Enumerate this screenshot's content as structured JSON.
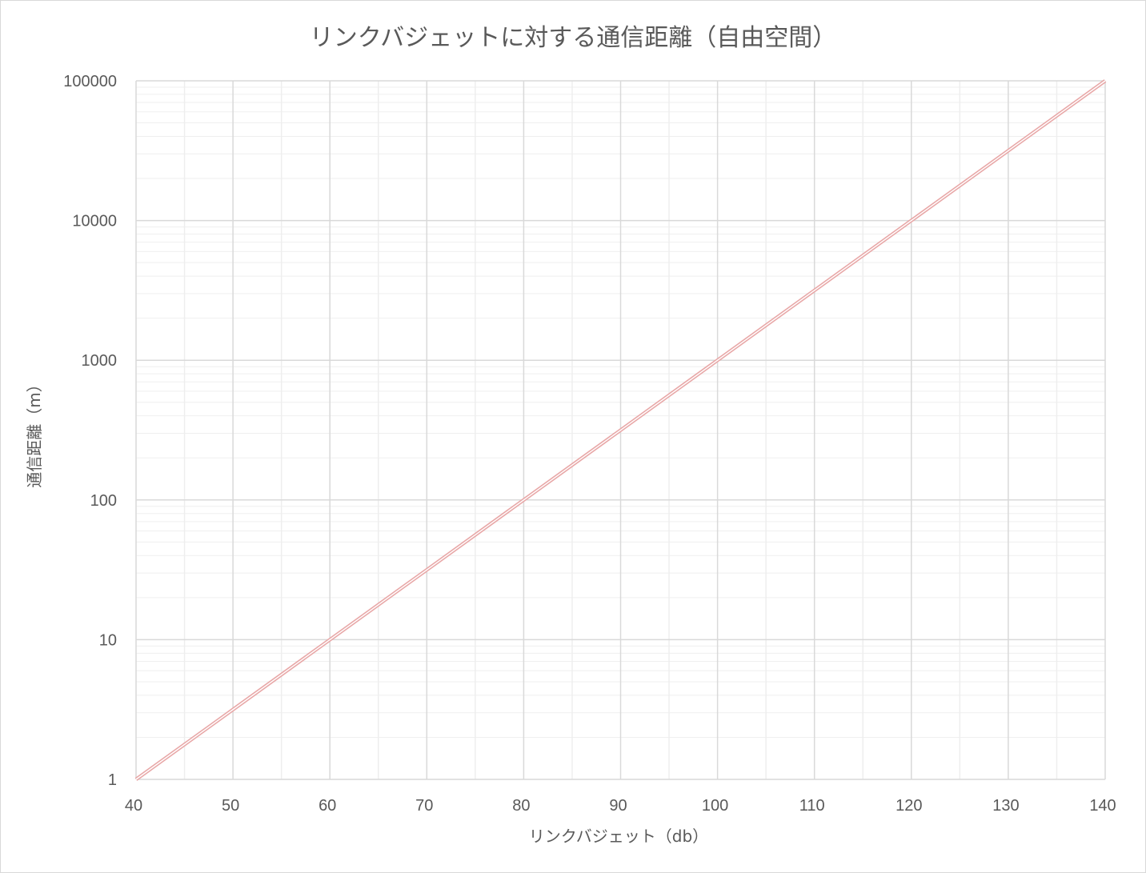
{
  "chart_data": {
    "type": "line",
    "title": "リンクバジェットに対する通信距離（自由空間）",
    "xlabel": "リンクバジェット（db）",
    "ylabel": "通信距離（m）",
    "xlim": [
      40,
      140
    ],
    "ylim": [
      1,
      100000
    ],
    "yscale": "log",
    "x_ticks": [
      "40",
      "50",
      "60",
      "70",
      "80",
      "90",
      "100",
      "110",
      "120",
      "130",
      "140"
    ],
    "y_ticks": [
      "1",
      "10",
      "100",
      "1000",
      "10000",
      "100000"
    ],
    "grid": true,
    "legend": "none",
    "series": [
      {
        "color": "#e8a7a7",
        "x": [
          40,
          50,
          60,
          70,
          80,
          90,
          100,
          110,
          120,
          130,
          140
        ],
        "y": [
          1,
          3.16,
          10,
          31.6,
          100,
          316,
          1000,
          3162,
          10000,
          31623,
          100000
        ]
      }
    ]
  }
}
